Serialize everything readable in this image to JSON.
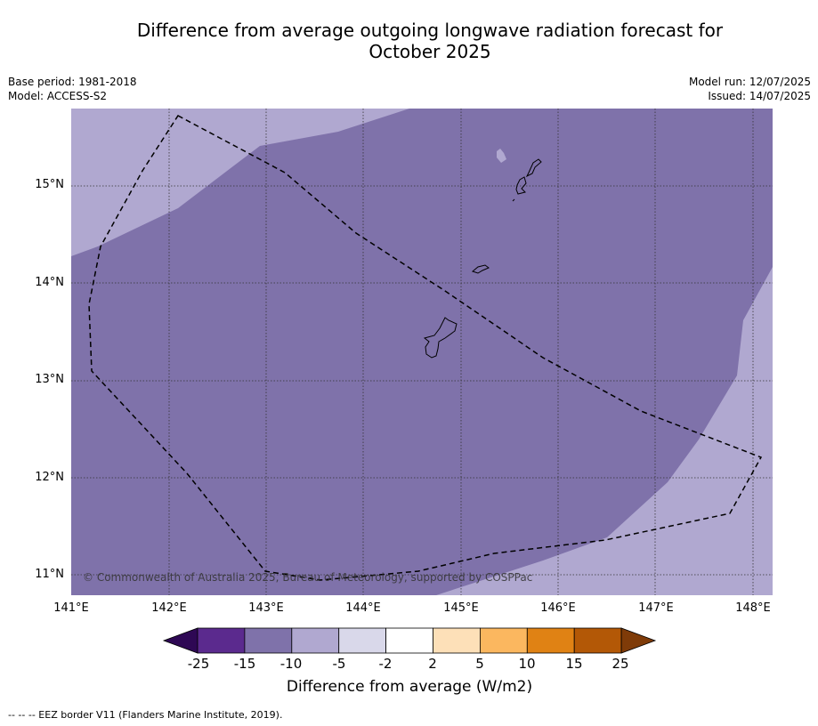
{
  "title_line1": "Difference from average outgoing longwave radiation forecast for",
  "title_line2": "October 2025",
  "meta_left": {
    "base_period": "Base period: 1981-2018",
    "model": "Model: ACCESS-S2"
  },
  "meta_right": {
    "model_run": "Model run: 12/07/2025",
    "issued": "Issued: 14/07/2025"
  },
  "latitude_labels": [
    "15°N",
    "14°N",
    "13°N",
    "12°N",
    "11°N"
  ],
  "longitude_labels": [
    "141°E",
    "142°E",
    "143°E",
    "144°E",
    "145°E",
    "146°E",
    "147°E",
    "148°E"
  ],
  "colorbar": {
    "ticks": [
      "-25",
      "-15",
      "-10",
      "-5",
      "-2",
      "2",
      "5",
      "10",
      "15",
      "25"
    ],
    "colors": [
      "#2e0854",
      "#5b2a8e",
      "#7f72aa",
      "#b0a8d0",
      "#d9d8ea",
      "#ffffff",
      "#fde0b8",
      "#fbb75f",
      "#e08214",
      "#b35806",
      "#7f3b08"
    ],
    "title": "Difference from average (W/m2)"
  },
  "copyright": "© Commonwealth of Australia 2025, Bureau of Meteorology, supported by COSPPac",
  "footnote": "--  --  -- EEZ border V11 (Flanders Marine Institute, 2019).",
  "fill_colors": {
    "dark_band": "#7f72aa",
    "light_band": "#b0a8d0"
  }
}
